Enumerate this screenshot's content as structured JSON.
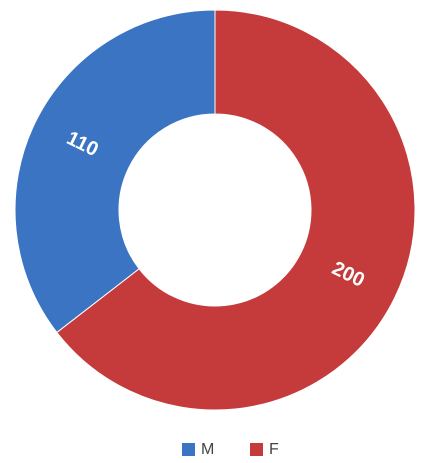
{
  "chart_data": {
    "type": "donut",
    "categories": [
      "M",
      "F"
    ],
    "values": [
      110,
      200
    ],
    "colors": [
      "#3a74c2",
      "#c53a3a"
    ]
  }
}
